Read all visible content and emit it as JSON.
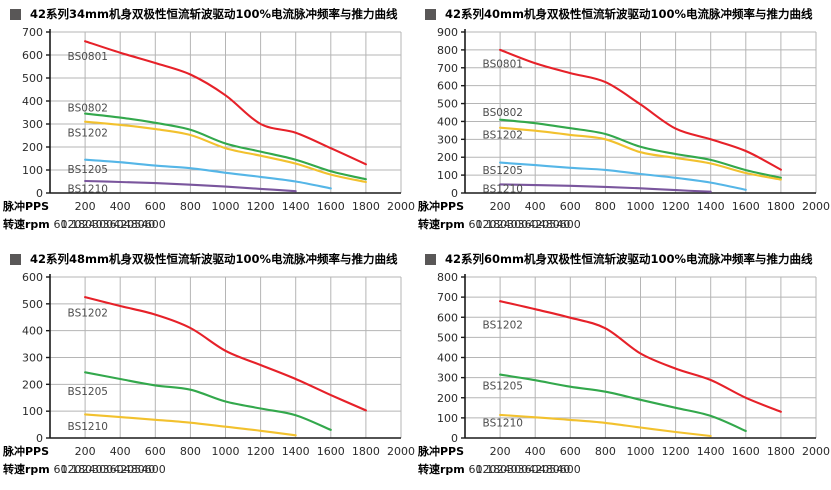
{
  "page": {
    "background": "#ffffff",
    "grid_color": "#b5b5b5",
    "axis_color": "#1a1a1a"
  },
  "chart_data": [
    {
      "type": "line",
      "title": "42系列34mm机身双极性恒流斩波驱动100%电流脉冲频率与推力曲线",
      "ylim": [
        0,
        700
      ],
      "ystep": 100,
      "xlim": [
        0,
        2000
      ],
      "grid": true,
      "legend_position": "inline-labels",
      "x_rows": [
        {
          "label": "脉冲PPS",
          "values": [
            200,
            400,
            600,
            800,
            1000,
            1200,
            1400,
            1600,
            1800,
            2000
          ]
        },
        {
          "label": "转速rpm",
          "values": [
            60,
            120,
            180,
            240,
            300,
            360,
            420,
            480,
            540,
            600
          ]
        }
      ],
      "series": [
        {
          "name": "BS0801",
          "color": "#e62129",
          "label_at": [
            100,
            595
          ],
          "points": [
            [
              200,
              660
            ],
            [
              400,
              610
            ],
            [
              600,
              565
            ],
            [
              800,
              515
            ],
            [
              1000,
              425
            ],
            [
              1200,
              300
            ],
            [
              1400,
              262
            ],
            [
              1600,
              195
            ],
            [
              1800,
              125
            ]
          ]
        },
        {
          "name": "BS0802",
          "color": "#33a84c",
          "label_at": [
            100,
            372
          ],
          "points": [
            [
              200,
              345
            ],
            [
              400,
              328
            ],
            [
              600,
              305
            ],
            [
              800,
              275
            ],
            [
              1000,
              215
            ],
            [
              1200,
              180
            ],
            [
              1400,
              145
            ],
            [
              1600,
              95
            ],
            [
              1800,
              60
            ]
          ]
        },
        {
          "name": "BS1202",
          "color": "#f2c12e",
          "label_at": [
            100,
            262
          ],
          "points": [
            [
              200,
              310
            ],
            [
              400,
              296
            ],
            [
              600,
              278
            ],
            [
              800,
              252
            ],
            [
              1000,
              195
            ],
            [
              1200,
              162
            ],
            [
              1400,
              128
            ],
            [
              1600,
              80
            ],
            [
              1800,
              48
            ]
          ]
        },
        {
          "name": "BS1205",
          "color": "#55b6e7",
          "label_at": [
            100,
            104
          ],
          "points": [
            [
              200,
              145
            ],
            [
              400,
              134
            ],
            [
              600,
              119
            ],
            [
              800,
              108
            ],
            [
              1000,
              88
            ],
            [
              1200,
              70
            ],
            [
              1400,
              50
            ],
            [
              1600,
              20
            ]
          ]
        },
        {
          "name": "BS1210",
          "color": "#7a569d",
          "label_at": [
            100,
            20
          ],
          "points": [
            [
              200,
              52
            ],
            [
              400,
              48
            ],
            [
              600,
              43
            ],
            [
              800,
              36
            ],
            [
              1000,
              28
            ],
            [
              1200,
              18
            ],
            [
              1400,
              8
            ]
          ]
        }
      ]
    },
    {
      "type": "line",
      "title": "42系列40mm机身双极性恒流斩波驱动100%电流脉冲频率与推力曲线",
      "ylim": [
        0,
        900
      ],
      "ystep": 100,
      "xlim": [
        0,
        2000
      ],
      "grid": true,
      "legend_position": "inline-labels",
      "x_rows": [
        {
          "label": "脉冲PPS",
          "values": [
            200,
            400,
            600,
            800,
            1000,
            1200,
            1400,
            1600,
            1800,
            2000
          ]
        },
        {
          "label": "转速rpm",
          "values": [
            60,
            120,
            180,
            240,
            300,
            360,
            420,
            480,
            540,
            600
          ]
        }
      ],
      "series": [
        {
          "name": "BS0801",
          "color": "#e62129",
          "label_at": [
            100,
            725
          ],
          "points": [
            [
              200,
              800
            ],
            [
              400,
              725
            ],
            [
              600,
              670
            ],
            [
              800,
              620
            ],
            [
              1000,
              495
            ],
            [
              1200,
              360
            ],
            [
              1400,
              300
            ],
            [
              1600,
              235
            ],
            [
              1800,
              130
            ]
          ]
        },
        {
          "name": "BS0802",
          "color": "#33a84c",
          "label_at": [
            100,
            452
          ],
          "points": [
            [
              200,
              410
            ],
            [
              400,
              390
            ],
            [
              600,
              362
            ],
            [
              800,
              330
            ],
            [
              1000,
              258
            ],
            [
              1200,
              218
            ],
            [
              1400,
              185
            ],
            [
              1600,
              128
            ],
            [
              1800,
              85
            ]
          ]
        },
        {
          "name": "BS1202",
          "color": "#f2c12e",
          "label_at": [
            100,
            328
          ],
          "points": [
            [
              200,
              365
            ],
            [
              400,
              348
            ],
            [
              600,
              325
            ],
            [
              800,
              300
            ],
            [
              1000,
              228
            ],
            [
              1200,
              196
            ],
            [
              1400,
              165
            ],
            [
              1600,
              112
            ],
            [
              1800,
              75
            ]
          ]
        },
        {
          "name": "BS1205",
          "color": "#55b6e7",
          "label_at": [
            100,
            128
          ],
          "points": [
            [
              200,
              170
            ],
            [
              400,
              156
            ],
            [
              600,
              141
            ],
            [
              800,
              129
            ],
            [
              1000,
              106
            ],
            [
              1200,
              85
            ],
            [
              1400,
              58
            ],
            [
              1600,
              18
            ]
          ]
        },
        {
          "name": "BS1210",
          "color": "#7a569d",
          "label_at": [
            100,
            25
          ],
          "points": [
            [
              200,
              48
            ],
            [
              400,
              44
            ],
            [
              600,
              40
            ],
            [
              800,
              34
            ],
            [
              1000,
              26
            ],
            [
              1200,
              16
            ],
            [
              1400,
              7
            ]
          ]
        }
      ]
    },
    {
      "type": "line",
      "title": "42系列48mm机身双极性恒流斩波驱动100%电流脉冲频率与推力曲线",
      "ylim": [
        0,
        600
      ],
      "ystep": 100,
      "xlim": [
        0,
        2000
      ],
      "grid": true,
      "legend_position": "inline-labels",
      "x_rows": [
        {
          "label": "脉冲PPS",
          "values": [
            200,
            400,
            600,
            800,
            1000,
            1200,
            1400,
            1600,
            1800,
            2000
          ]
        },
        {
          "label": "转速rpm",
          "values": [
            60,
            120,
            180,
            240,
            300,
            360,
            420,
            480,
            540,
            600
          ]
        }
      ],
      "series": [
        {
          "name": "BS1202",
          "color": "#e62129",
          "label_at": [
            100,
            468
          ],
          "points": [
            [
              200,
              525
            ],
            [
              400,
              492
            ],
            [
              600,
              460
            ],
            [
              800,
              410
            ],
            [
              1000,
              325
            ],
            [
              1200,
              272
            ],
            [
              1400,
              220
            ],
            [
              1600,
              160
            ],
            [
              1800,
              103
            ]
          ]
        },
        {
          "name": "BS1205",
          "color": "#33a84c",
          "label_at": [
            100,
            175
          ],
          "points": [
            [
              200,
              245
            ],
            [
              400,
              220
            ],
            [
              600,
              196
            ],
            [
              800,
              180
            ],
            [
              1000,
              136
            ],
            [
              1200,
              110
            ],
            [
              1400,
              85
            ],
            [
              1600,
              30
            ]
          ]
        },
        {
          "name": "BS1210",
          "color": "#f2c12e",
          "label_at": [
            100,
            45
          ],
          "points": [
            [
              200,
              88
            ],
            [
              400,
              78
            ],
            [
              600,
              68
            ],
            [
              800,
              57
            ],
            [
              1000,
              42
            ],
            [
              1200,
              27
            ],
            [
              1400,
              10
            ]
          ]
        }
      ]
    },
    {
      "type": "line",
      "title": "42系列60mm机身双极性恒流斩波驱动100%电流脉冲频率与推力曲线",
      "ylim": [
        0,
        800
      ],
      "ystep": 100,
      "xlim": [
        0,
        2000
      ],
      "grid": true,
      "legend_position": "inline-labels",
      "x_rows": [
        {
          "label": "脉冲PPS",
          "values": [
            200,
            400,
            600,
            800,
            1000,
            1200,
            1400,
            1600,
            1800,
            2000
          ]
        },
        {
          "label": "转速rpm",
          "values": [
            60,
            120,
            180,
            240,
            300,
            360,
            420,
            480,
            540,
            600
          ]
        }
      ],
      "series": [
        {
          "name": "BS1202",
          "color": "#e62129",
          "label_at": [
            100,
            565
          ],
          "points": [
            [
              200,
              680
            ],
            [
              400,
              640
            ],
            [
              600,
              598
            ],
            [
              800,
              545
            ],
            [
              1000,
              420
            ],
            [
              1200,
              345
            ],
            [
              1400,
              288
            ],
            [
              1600,
              200
            ],
            [
              1800,
              130
            ]
          ]
        },
        {
          "name": "BS1205",
          "color": "#33a84c",
          "label_at": [
            100,
            262
          ],
          "points": [
            [
              200,
              315
            ],
            [
              400,
              287
            ],
            [
              600,
              255
            ],
            [
              800,
              230
            ],
            [
              1000,
              190
            ],
            [
              1200,
              150
            ],
            [
              1400,
              110
            ],
            [
              1600,
              35
            ]
          ]
        },
        {
          "name": "BS1210",
          "color": "#f2c12e",
          "label_at": [
            100,
            78
          ],
          "points": [
            [
              200,
              115
            ],
            [
              400,
              103
            ],
            [
              600,
              90
            ],
            [
              800,
              75
            ],
            [
              1000,
              52
            ],
            [
              1200,
              30
            ],
            [
              1400,
              10
            ]
          ]
        }
      ]
    }
  ]
}
